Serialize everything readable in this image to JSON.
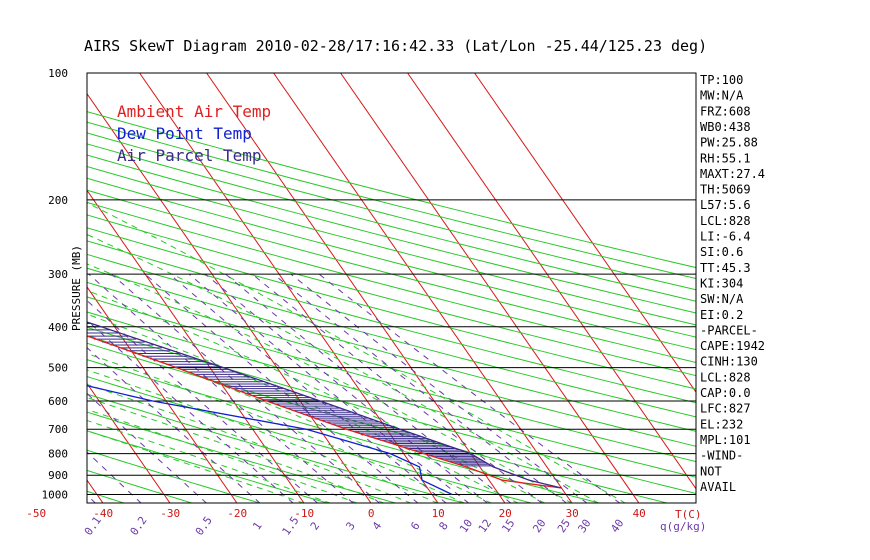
{
  "title": "AIRS SkewT Diagram 2010-02-28/17:16:42.33 (Lat/Lon -25.44/125.23 deg)",
  "colors": {
    "ambient": "#e02020",
    "dewpoint": "#1020d0",
    "parcel": "#3a2a8a",
    "isotherm": "#d81818",
    "dry_adiabat": "#28c828",
    "moist_adiabat": "#28c828",
    "mixing_ratio": "#6a3aa8",
    "hatch": "#3a2a8a",
    "ticklabel": "#c81818",
    "mixlabel": "#6a3aa8"
  },
  "legend": {
    "ambient": "Ambient Air Temp",
    "dewpoint": "Dew Point Temp",
    "parcel": "Air Parcel Temp"
  },
  "chart_data": {
    "type": "line",
    "title": "AIRS SkewT Diagram 2010-02-28/17:16:42.33 (Lat/Lon -25.44/125.23 deg)",
    "ylabel": "PRESSURE (MB)",
    "xlabel_right": "T(C)",
    "mixing_unit_label": "q(g/kg)",
    "y_scale": "log",
    "ylim": [
      1050,
      100
    ],
    "pressure_ticks": [
      100,
      200,
      300,
      400,
      500,
      600,
      700,
      800,
      900,
      1000
    ],
    "top_temp_ticks": [
      -120,
      -110,
      -100,
      -90,
      -80,
      -70,
      -60,
      -50,
      -40
    ],
    "bottom_temp_ticks": [
      -50,
      -40,
      -30,
      -20,
      -10,
      0,
      10,
      20,
      30,
      40
    ],
    "mixing_ratio_labels": [
      "0.1",
      "0.2",
      "0.5",
      "1",
      "1.5",
      "2",
      "3",
      "4",
      "6",
      "8",
      "10",
      "12",
      "15",
      "20",
      "25",
      "30",
      "40"
    ],
    "series": [
      {
        "name": "Ambient Air Temp",
        "points": [
          [
            100,
            -78
          ],
          [
            150,
            -75
          ],
          [
            200,
            -65
          ],
          [
            250,
            -60
          ],
          [
            300,
            -48
          ],
          [
            400,
            -28
          ],
          [
            500,
            -15
          ],
          [
            600,
            -5
          ],
          [
            700,
            4
          ],
          [
            800,
            13
          ],
          [
            860,
            18
          ],
          [
            925,
            22
          ],
          [
            965,
            30
          ]
        ]
      },
      {
        "name": "Dew Point Temp",
        "points": [
          [
            100,
            -82
          ],
          [
            150,
            -90
          ],
          [
            200,
            -95
          ],
          [
            250,
            -100
          ],
          [
            300,
            -100
          ],
          [
            400,
            -70
          ],
          [
            500,
            -40
          ],
          [
            600,
            -22
          ],
          [
            700,
            -2
          ],
          [
            800,
            8
          ],
          [
            860,
            11
          ],
          [
            925,
            10
          ],
          [
            1000,
            13
          ]
        ]
      },
      {
        "name": "Air Parcel Temp",
        "points": [
          [
            150,
            -78
          ],
          [
            200,
            -64
          ],
          [
            250,
            -53
          ],
          [
            300,
            -40
          ],
          [
            400,
            -22
          ],
          [
            500,
            -8
          ],
          [
            600,
            3
          ],
          [
            700,
            12
          ],
          [
            800,
            20
          ],
          [
            860,
            22
          ],
          [
            925,
            26
          ],
          [
            965,
            30
          ]
        ]
      }
    ]
  },
  "indices": [
    "TP:100",
    "MW:N/A",
    "FRZ:608",
    "WB0:438",
    "PW:25.88",
    "RH:55.1",
    "MAXT:27.4",
    "TH:5069",
    "L57:5.6",
    "LCL:828",
    "LI:-6.4",
    "SI:0.6",
    "TT:45.3",
    "KI:304",
    "SW:N/A",
    "EI:0.2",
    "-PARCEL-",
    "CAPE:1942",
    "CINH:130",
    "LCL:828",
    "CAP:0.0",
    "LFC:827",
    "EL:232",
    "MPL:101",
    "-WIND-",
    "NOT",
    "AVAIL"
  ]
}
